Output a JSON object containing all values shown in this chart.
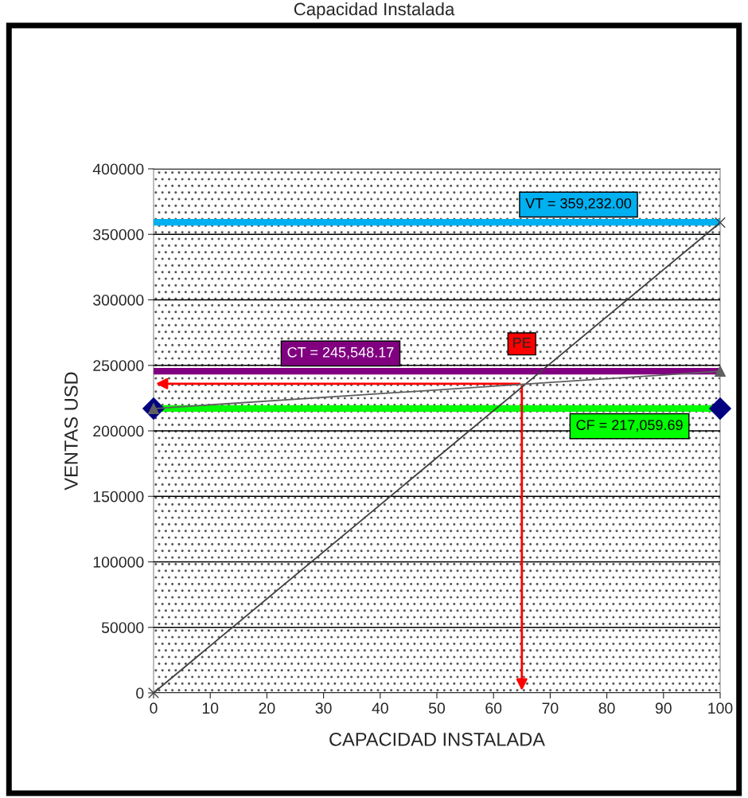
{
  "chart_data": {
    "type": "line",
    "title": "Capacidad Instalada",
    "xlabel": "CAPACIDAD INSTALADA",
    "ylabel": "VENTAS USD",
    "x": [
      0,
      100
    ],
    "series": [
      {
        "color": "#404040",
        "values": [
          0,
          359000
        ],
        "marker": "cross"
      },
      {
        "color": "#606060",
        "values": [
          217000,
          245500
        ],
        "marker": "triangle"
      },
      {
        "type": "scatter",
        "color": "#000080",
        "values": [
          217000,
          217000
        ],
        "marker": "diamond"
      }
    ],
    "ref_lines": [
      {
        "axis": "y",
        "value": 359232,
        "label": "VT = 359,232.00",
        "color": "#00b0f0"
      },
      {
        "axis": "y",
        "value": 245548.17,
        "label": "CT = 245,548.17",
        "color": "#800080"
      },
      {
        "axis": "y",
        "value": 217059.69,
        "label": "CF = 217,059.69",
        "color": "#00ff00"
      }
    ],
    "annotations": [
      {
        "text": "PE",
        "x": 65,
        "y": 236000
      }
    ],
    "xlim": [
      0,
      100
    ],
    "xticks": [
      0,
      10,
      20,
      30,
      40,
      50,
      60,
      70,
      80,
      90,
      100
    ],
    "ylim": [
      0,
      400000
    ],
    "yticks": [
      0,
      50000,
      100000,
      150000,
      200000,
      250000,
      300000,
      350000,
      400000
    ],
    "grid": "y",
    "legend": false
  }
}
